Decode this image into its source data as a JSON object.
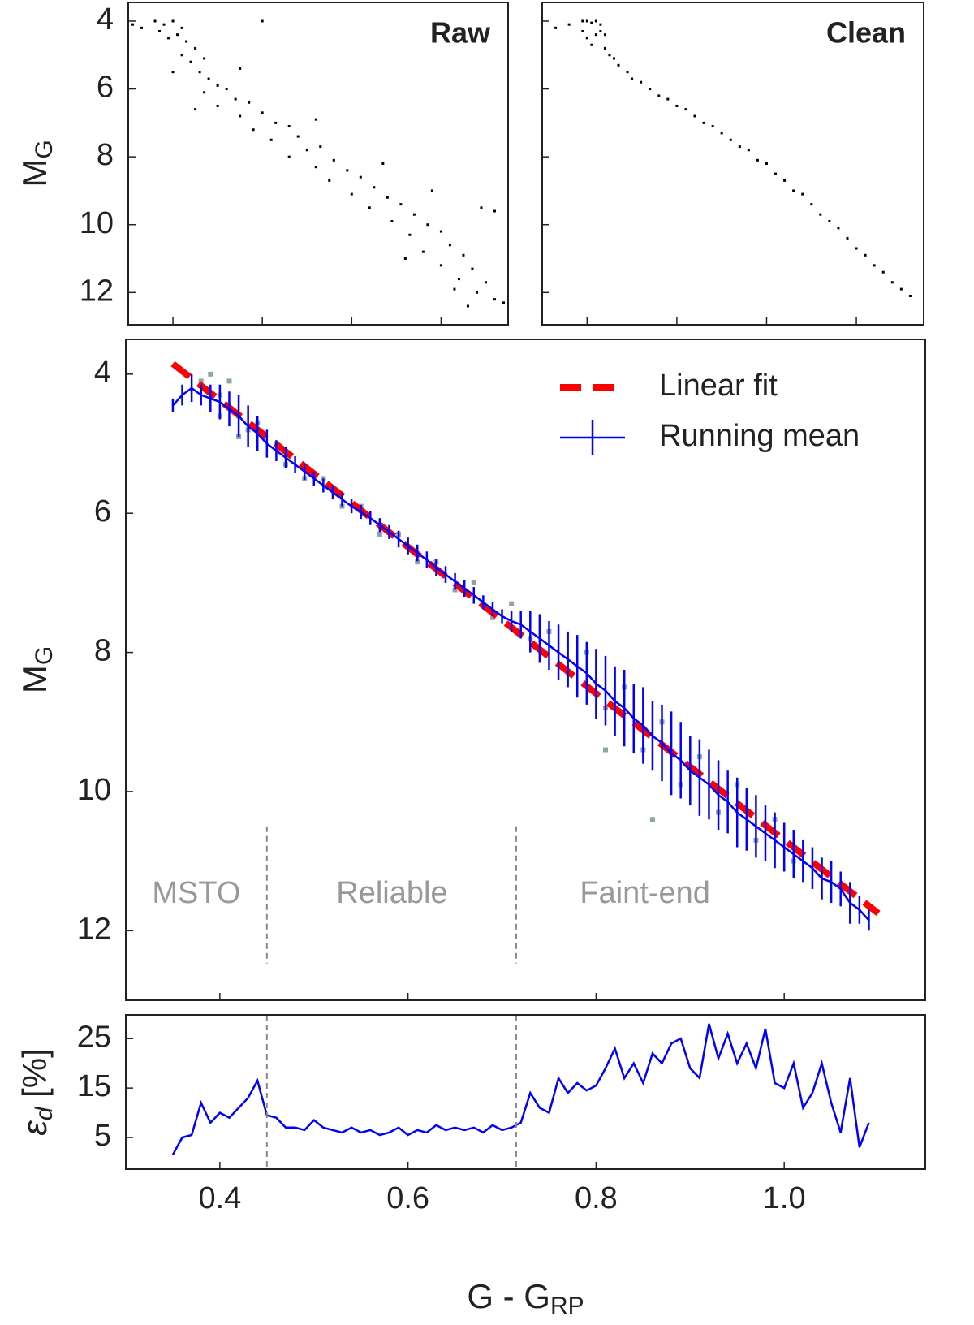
{
  "chart_data": [
    {
      "type": "scatter",
      "label": "Raw",
      "y_label": "M",
      "y_label_sub": "G",
      "xlim": [
        0.3,
        1.15
      ],
      "xticks": [
        0.4,
        0.6,
        0.8,
        {
          "value": 1,
          "label": "1.0"
        }
      ],
      "show_xtick_labels": false,
      "ylim": [
        3.45,
        12.95
      ],
      "y_inverted": true,
      "yticks": [
        4,
        6,
        8,
        10,
        12
      ],
      "show_ytick_labels": true,
      "color": "#000000",
      "x": [
        0.36,
        0.38,
        0.4,
        0.42,
        0.37,
        0.39,
        0.41,
        0.43,
        0.33,
        0.31,
        0.45,
        0.42,
        0.44,
        0.47,
        0.4,
        0.46,
        0.48,
        0.5,
        0.47,
        0.52,
        0.54,
        0.5,
        0.57,
        0.55,
        0.6,
        0.63,
        0.58,
        0.66,
        0.62,
        0.68,
        0.7,
        0.73,
        0.66,
        0.76,
        0.72,
        0.79,
        0.75,
        0.82,
        0.85,
        0.8,
        0.88,
        0.84,
        0.91,
        0.94,
        0.89,
        0.97,
        0.93,
        1.0,
        1.02,
        0.96,
        1.05,
        1.0,
        1.07,
        1.04,
        1.1,
        1.08,
        1.12,
        1.06,
        1.14,
        0.87,
        0.98,
        1.09,
        1.12,
        0.55,
        0.45,
        0.72,
        0.92,
        1.03,
        0.6
      ],
      "values": [
        4.0,
        4.1,
        4.0,
        4.2,
        4.3,
        4.5,
        4.4,
        4.6,
        4.2,
        4.1,
        4.8,
        5.0,
        5.2,
        5.1,
        5.5,
        5.5,
        5.7,
        5.9,
        6.1,
        6.0,
        6.3,
        6.5,
        6.4,
        6.8,
        6.7,
        7.0,
        7.2,
        7.1,
        7.5,
        7.4,
        7.8,
        7.7,
        8.0,
        8.1,
        8.3,
        8.4,
        8.7,
        8.6,
        8.9,
        9.1,
        9.2,
        9.5,
        9.4,
        9.7,
        9.9,
        10.0,
        10.3,
        10.2,
        10.6,
        10.8,
        10.9,
        11.2,
        11.3,
        11.6,
        11.7,
        12.0,
        12.2,
        12.4,
        12.3,
        8.2,
        9.0,
        9.5,
        9.6,
        5.4,
        6.6,
        6.9,
        11.0,
        11.9,
        4.0
      ]
    },
    {
      "type": "scatter",
      "label": "Clean",
      "xlim": [
        0.3,
        1.15
      ],
      "xticks": [
        0.4,
        0.6,
        0.8,
        {
          "value": 1,
          "label": "1.0"
        }
      ],
      "show_xtick_labels": false,
      "ylim": [
        3.45,
        12.95
      ],
      "y_inverted": true,
      "yticks": [
        4,
        6,
        8,
        10,
        12
      ],
      "show_ytick_labels": false,
      "color": "#000000",
      "x": [
        0.39,
        0.4,
        0.41,
        0.42,
        0.43,
        0.39,
        0.4,
        0.42,
        0.43,
        0.44,
        0.41,
        0.44,
        0.45,
        0.46,
        0.47,
        0.49,
        0.5,
        0.52,
        0.54,
        0.56,
        0.58,
        0.6,
        0.62,
        0.64,
        0.66,
        0.68,
        0.7,
        0.72,
        0.74,
        0.76,
        0.78,
        0.8,
        0.82,
        0.84,
        0.86,
        0.88,
        0.9,
        0.92,
        0.94,
        0.96,
        0.98,
        1.0,
        1.02,
        1.04,
        1.06,
        1.08,
        1.1,
        1.12,
        0.36,
        0.33
      ],
      "values": [
        4.0,
        4.0,
        4.05,
        4.0,
        4.1,
        4.3,
        4.5,
        4.4,
        4.3,
        4.4,
        4.7,
        4.8,
        5.0,
        5.1,
        5.3,
        5.5,
        5.7,
        5.8,
        6.0,
        6.2,
        6.3,
        6.5,
        6.6,
        6.8,
        7.0,
        7.1,
        7.3,
        7.5,
        7.7,
        7.8,
        8.1,
        8.2,
        8.5,
        8.7,
        9.0,
        9.1,
        9.4,
        9.7,
        9.9,
        10.1,
        10.4,
        10.7,
        10.9,
        11.2,
        11.4,
        11.7,
        11.9,
        12.1,
        4.1,
        4.2
      ]
    },
    {
      "type": "line",
      "y_label": "M",
      "y_label_sub": "G",
      "xlim": [
        0.3,
        1.15
      ],
      "xticks": [
        0.4,
        0.6,
        0.8,
        {
          "value": 1,
          "label": "1.0"
        }
      ],
      "show_xtick_labels": false,
      "ylim": [
        3.5,
        13
      ],
      "y_inverted": true,
      "yticks": [
        4,
        6,
        8,
        10,
        12
      ],
      "show_ytick_labels": true,
      "legend": "upper right",
      "cloud": {
        "color": "#8fa3a8",
        "x": [
          0.38,
          0.39,
          0.4,
          0.41,
          0.42,
          0.43,
          0.44,
          0.46,
          0.47,
          0.49,
          0.51,
          0.53,
          0.55,
          0.57,
          0.59,
          0.61,
          0.63,
          0.65,
          0.67,
          0.69,
          0.71,
          0.73,
          0.75,
          0.77,
          0.79,
          0.81,
          0.83,
          0.85,
          0.87,
          0.89,
          0.91,
          0.93,
          0.95,
          0.97,
          0.99,
          1.01,
          0.86,
          0.81,
          0.42,
          0.4
        ],
        "values": [
          4.1,
          4.0,
          4.3,
          4.1,
          4.6,
          4.8,
          4.7,
          5.0,
          5.3,
          5.5,
          5.5,
          5.9,
          5.9,
          6.3,
          6.3,
          6.7,
          6.7,
          7.1,
          7.0,
          7.5,
          7.3,
          7.8,
          7.7,
          8.3,
          8.0,
          8.8,
          8.5,
          9.4,
          9.0,
          9.9,
          9.5,
          10.3,
          9.9,
          10.7,
          10.4,
          11.0,
          10.4,
          9.4,
          4.9,
          4.6
        ]
      },
      "series": [
        {
          "name": "Linear fit",
          "color": "#ff0000",
          "dashed": true,
          "x": [
            0.35,
            1.1
          ],
          "values": [
            3.85,
            11.75
          ]
        },
        {
          "name": "Running mean",
          "color": "#0000ff",
          "dashed": false,
          "x": [
            0.35,
            0.36,
            0.37,
            0.38,
            0.39,
            0.4,
            0.41,
            0.42,
            0.43,
            0.44,
            0.45,
            0.46,
            0.47,
            0.48,
            0.49,
            0.5,
            0.51,
            0.52,
            0.53,
            0.54,
            0.55,
            0.56,
            0.57,
            0.58,
            0.59,
            0.6,
            0.61,
            0.62,
            0.63,
            0.64,
            0.65,
            0.66,
            0.67,
            0.68,
            0.69,
            0.7,
            0.71,
            0.72,
            0.73,
            0.74,
            0.75,
            0.76,
            0.77,
            0.78,
            0.79,
            0.8,
            0.81,
            0.82,
            0.83,
            0.84,
            0.85,
            0.86,
            0.87,
            0.88,
            0.89,
            0.9,
            0.91,
            0.92,
            0.93,
            0.94,
            0.95,
            0.96,
            0.97,
            0.98,
            0.99,
            1.0,
            1.01,
            1.02,
            1.03,
            1.04,
            1.05,
            1.06,
            1.07,
            1.08,
            1.09
          ],
          "values": [
            4.45,
            4.3,
            4.2,
            4.3,
            4.35,
            4.4,
            4.5,
            4.6,
            4.75,
            4.85,
            5.0,
            5.1,
            5.2,
            5.3,
            5.4,
            5.5,
            5.6,
            5.7,
            5.8,
            5.9,
            5.98,
            6.07,
            6.17,
            6.27,
            6.37,
            6.47,
            6.57,
            6.67,
            6.78,
            6.88,
            6.98,
            7.08,
            7.18,
            7.28,
            7.38,
            7.48,
            7.55,
            7.6,
            7.7,
            7.8,
            7.9,
            8.0,
            8.1,
            8.2,
            8.3,
            8.45,
            8.55,
            8.7,
            8.8,
            8.95,
            9.05,
            9.2,
            9.3,
            9.45,
            9.55,
            9.7,
            9.8,
            9.9,
            10.05,
            10.15,
            10.3,
            10.4,
            10.5,
            10.6,
            10.7,
            10.8,
            10.9,
            11.0,
            11.1,
            11.25,
            11.3,
            11.4,
            11.6,
            11.7,
            11.85
          ],
          "errors": [
            0.1,
            0.15,
            0.2,
            0.15,
            0.2,
            0.25,
            0.25,
            0.3,
            0.3,
            0.25,
            0.2,
            0.15,
            0.15,
            0.12,
            0.12,
            0.1,
            0.1,
            0.1,
            0.1,
            0.1,
            0.1,
            0.1,
            0.1,
            0.1,
            0.12,
            0.12,
            0.12,
            0.12,
            0.12,
            0.12,
            0.12,
            0.12,
            0.12,
            0.1,
            0.1,
            0.1,
            0.15,
            0.2,
            0.3,
            0.35,
            0.35,
            0.4,
            0.4,
            0.45,
            0.45,
            0.5,
            0.5,
            0.5,
            0.55,
            0.5,
            0.55,
            0.5,
            0.55,
            0.6,
            0.55,
            0.5,
            0.55,
            0.5,
            0.5,
            0.45,
            0.5,
            0.45,
            0.45,
            0.4,
            0.4,
            0.35,
            0.35,
            0.3,
            0.3,
            0.3,
            0.3,
            0.25,
            0.3,
            0.2,
            0.15
          ]
        }
      ],
      "vlines": [
        0.45,
        0.715
      ],
      "vline_span": [
        10.5,
        12.47
      ],
      "annotations": [
        {
          "text": "MSTO",
          "x": 0.375,
          "y": 11.48
        },
        {
          "text": "Reliable",
          "x": 0.583,
          "y": 11.48
        },
        {
          "text": "Faint-end",
          "x": 0.852,
          "y": 11.48
        }
      ]
    },
    {
      "type": "line",
      "y_label": "ε",
      "y_label_sub": "d",
      "y_label_suffix": " [%]",
      "x_label": "G - G",
      "x_label_sub": "RP",
      "xlim": [
        0.3,
        1.15
      ],
      "xticks": [
        0.4,
        0.6,
        0.8,
        {
          "value": 1,
          "label": "1.0"
        }
      ],
      "show_xtick_labels": true,
      "ylim": [
        -1.4,
        29.8
      ],
      "y_inverted": false,
      "yticks": [
        5,
        15,
        25
      ],
      "show_ytick_labels": true,
      "vlines": [
        0.45,
        0.715
      ],
      "series": [
        {
          "color": "#0000ff",
          "dashed": false,
          "x": [
            0.35,
            0.36,
            0.37,
            0.38,
            0.39,
            0.4,
            0.41,
            0.42,
            0.43,
            0.44,
            0.45,
            0.46,
            0.47,
            0.48,
            0.49,
            0.5,
            0.51,
            0.52,
            0.53,
            0.54,
            0.55,
            0.56,
            0.57,
            0.58,
            0.59,
            0.6,
            0.61,
            0.62,
            0.63,
            0.64,
            0.65,
            0.66,
            0.67,
            0.68,
            0.69,
            0.7,
            0.71,
            0.72,
            0.73,
            0.74,
            0.75,
            0.76,
            0.77,
            0.78,
            0.79,
            0.8,
            0.81,
            0.82,
            0.83,
            0.84,
            0.85,
            0.86,
            0.87,
            0.88,
            0.89,
            0.9,
            0.91,
            0.92,
            0.93,
            0.94,
            0.95,
            0.96,
            0.97,
            0.98,
            0.99,
            1.0,
            1.01,
            1.02,
            1.03,
            1.04,
            1.05,
            1.06,
            1.07,
            1.08,
            1.09
          ],
          "values": [
            1.5,
            5,
            5.5,
            12,
            8,
            10,
            9,
            11,
            13,
            16.5,
            9.5,
            9,
            7,
            7,
            6.5,
            8.5,
            7,
            6.5,
            6,
            7,
            6,
            6.5,
            5.5,
            6,
            7,
            5.5,
            6.5,
            6,
            7.5,
            6.5,
            7,
            6.5,
            7,
            6,
            7.5,
            6.5,
            7,
            8,
            14,
            11,
            10,
            17,
            14,
            16,
            14.5,
            15.5,
            19,
            23,
            17,
            20,
            16,
            22,
            20,
            24,
            25,
            19,
            17,
            28,
            21,
            26,
            20,
            24,
            19,
            27,
            16,
            15,
            20,
            11,
            14,
            20,
            12,
            6,
            17,
            3,
            8
          ]
        }
      ]
    }
  ]
}
